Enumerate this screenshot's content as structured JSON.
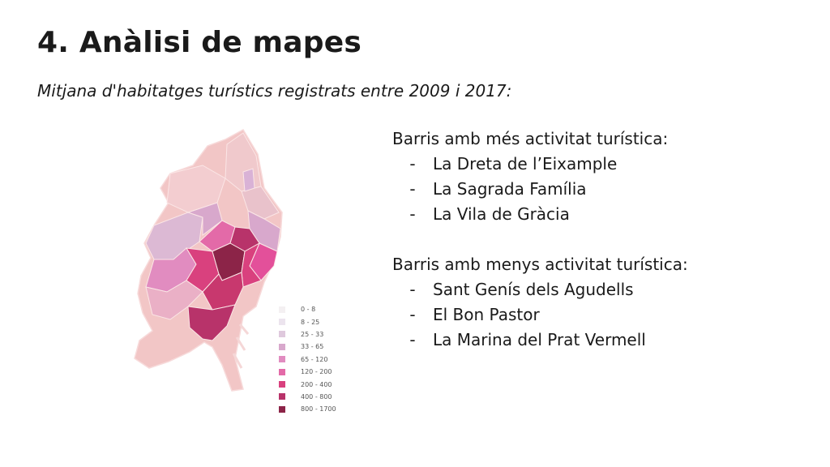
{
  "slide": {
    "title": "4. Anàlisi de mapes",
    "subtitle": "Mitjana d'habitatges turístics registrats entre 2009 i 2017:"
  },
  "legend": [
    {
      "label": "0 - 8",
      "color": "#f4f0f2"
    },
    {
      "label": "8 - 25",
      "color": "#ece4ee"
    },
    {
      "label": "25 - 33",
      "color": "#dfc9dd"
    },
    {
      "label": "33 - 65",
      "color": "#d8a8cc"
    },
    {
      "label": "65 - 120",
      "color": "#e18cc0"
    },
    {
      "label": "120 - 200",
      "color": "#e36aa8"
    },
    {
      "label": "200 - 400",
      "color": "#d9417e"
    },
    {
      "label": "400 - 800",
      "color": "#b8336a"
    },
    {
      "label": "800 - 1700",
      "color": "#8c2448"
    }
  ],
  "most": {
    "heading": "Barris amb més activitat turística:",
    "items": [
      "La Dreta de l’Eixample",
      "La Sagrada Família",
      "La Vila de Gràcia"
    ]
  },
  "least": {
    "heading": "Barris amb menys activitat turística:",
    "items": [
      "Sant Genís dels Agudells",
      "El Bon Pastor",
      "La Marina del Prat Vermell"
    ]
  },
  "bullet": "-"
}
